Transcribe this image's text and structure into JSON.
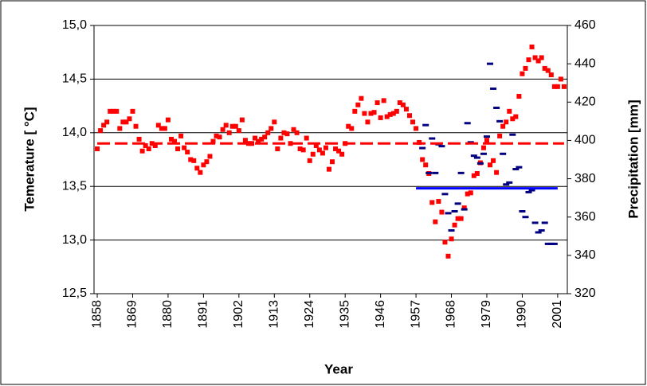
{
  "chart_data": {
    "type": "scatter",
    "xlabel": "Year",
    "ylabel": "Temerature [ °C]",
    "y2label": "Precipitation [mm]",
    "xlim": [
      1857,
      2004
    ],
    "xticks": [
      1858,
      1869,
      1880,
      1891,
      1902,
      1913,
      1924,
      1935,
      1946,
      1957,
      1968,
      1979,
      1990,
      2001
    ],
    "ylim": [
      12.5,
      15
    ],
    "yticks": [
      {
        "value": 12.5,
        "label": "12,5"
      },
      {
        "value": 13,
        "label": "13,0"
      },
      {
        "value": 13.5,
        "label": "13,5"
      },
      {
        "value": 14,
        "label": "14,0"
      },
      {
        "value": 14.5,
        "label": "14,5"
      },
      {
        "value": 15,
        "label": "15,0"
      }
    ],
    "y2lim": [
      320,
      460
    ],
    "y2ticks": [
      320,
      340,
      360,
      380,
      400,
      420,
      440,
      460
    ],
    "grid": true,
    "series": [
      {
        "color": "#ff0000",
        "style": "square",
        "x": [
          1858,
          1859,
          1860,
          1861,
          1862,
          1863,
          1864,
          1865,
          1866,
          1867,
          1868,
          1869,
          1870,
          1871,
          1872,
          1873,
          1874,
          1875,
          1876,
          1877,
          1878,
          1879,
          1880,
          1881,
          1882,
          1883,
          1884,
          1885,
          1886,
          1887,
          1888,
          1889,
          1890,
          1891,
          1892,
          1893,
          1894,
          1895,
          1896,
          1897,
          1898,
          1899,
          1900,
          1901,
          1902,
          1903,
          1904,
          1905,
          1906,
          1907,
          1908,
          1909,
          1910,
          1911,
          1912,
          1913,
          1914,
          1915,
          1916,
          1917,
          1918,
          1919,
          1920,
          1921,
          1922,
          1923,
          1924,
          1925,
          1926,
          1927,
          1928,
          1929,
          1930,
          1931,
          1932,
          1933,
          1934,
          1935,
          1936,
          1937,
          1938,
          1939,
          1940,
          1941,
          1942,
          1943,
          1944,
          1945,
          1946,
          1947,
          1948,
          1949,
          1950,
          1951,
          1952,
          1953,
          1954,
          1955,
          1956,
          1957,
          1958,
          1959,
          1960,
          1961,
          1962,
          1963,
          1964,
          1965,
          1966,
          1967,
          1968,
          1969,
          1970,
          1971,
          1972,
          1973,
          1974,
          1975,
          1976,
          1977,
          1978,
          1979,
          1980,
          1981,
          1982,
          1983,
          1984,
          1985,
          1986,
          1987,
          1988,
          1989,
          1990,
          1991,
          1992,
          1993,
          1994,
          1995,
          1996,
          1997,
          1998,
          1999,
          2000,
          2001,
          2002,
          2003
        ],
        "values": [
          13.85,
          14.02,
          14.07,
          14.1,
          14.2,
          14.2,
          14.2,
          14.04,
          14.1,
          14.1,
          14.13,
          14.2,
          14.06,
          13.94,
          13.83,
          13.88,
          13.85,
          13.9,
          13.88,
          14.07,
          14.04,
          14.04,
          14.12,
          13.94,
          13.92,
          13.85,
          13.97,
          13.86,
          13.82,
          13.75,
          13.74,
          13.67,
          13.63,
          13.7,
          13.73,
          13.78,
          13.92,
          13.97,
          13.96,
          14.03,
          14.07,
          14.0,
          14.06,
          14.06,
          14.02,
          14.12,
          13.93,
          13.9,
          13.9,
          13.95,
          13.92,
          13.94,
          13.96,
          14.0,
          14.04,
          14.1,
          13.85,
          13.95,
          14.0,
          13.99,
          13.9,
          14.03,
          14.0,
          13.85,
          13.84,
          13.95,
          13.74,
          13.8,
          13.88,
          13.84,
          13.81,
          13.86,
          13.66,
          13.73,
          13.85,
          13.83,
          13.8,
          13.9,
          14.06,
          14.04,
          14.2,
          14.26,
          14.32,
          14.18,
          14.1,
          14.18,
          14.19,
          14.28,
          14.14,
          14.3,
          14.15,
          14.17,
          14.18,
          14.2,
          14.28,
          14.26,
          14.22,
          14.16,
          14.1,
          14.04,
          13.91,
          13.75,
          13.7,
          13.62,
          13.35,
          13.17,
          13.36,
          13.26,
          12.98,
          12.85,
          13.01,
          13.14,
          13.2,
          13.2,
          13.3,
          13.43,
          13.44,
          13.6,
          13.62,
          13.72,
          13.86,
          13.93,
          13.7,
          13.74,
          13.63,
          13.97,
          14.06,
          14.1,
          14.2,
          14.13,
          14.15,
          14.34,
          14.55,
          14.6,
          14.68,
          14.8,
          14.7,
          14.67,
          14.7,
          14.6,
          14.58,
          14.54,
          14.43,
          14.43,
          14.5,
          14.43
        ]
      },
      {
        "color": "#000080",
        "style": "dash",
        "axis": "y2",
        "x": [
          1959,
          1960,
          1961,
          1962,
          1963,
          1964,
          1965,
          1966,
          1967,
          1968,
          1969,
          1970,
          1971,
          1972,
          1973,
          1974,
          1975,
          1976,
          1977,
          1978,
          1979,
          1980,
          1981,
          1982,
          1983,
          1984,
          1985,
          1986,
          1987,
          1988,
          1989,
          1990,
          1991,
          1992,
          1993,
          1994,
          1995,
          1996,
          1997,
          1998,
          1999,
          2000
        ],
        "values": [
          396,
          408,
          383,
          401,
          383,
          398,
          397,
          372,
          362,
          353,
          363,
          367,
          383,
          364,
          409,
          399,
          392,
          391,
          388,
          393,
          402,
          440,
          427,
          417,
          410,
          393,
          377,
          378,
          403,
          385,
          386,
          363,
          360,
          373,
          374,
          357,
          352,
          353,
          357,
          346,
          346,
          346
        ]
      },
      {
        "color": "#ff0000",
        "style": "dashed-line",
        "x": [
          1858,
          2003
        ],
        "values": [
          13.9,
          13.9
        ]
      },
      {
        "color": "#0000ff",
        "style": "line",
        "axis": "y2",
        "x": [
          1957,
          2001
        ],
        "values": [
          375,
          375
        ]
      }
    ]
  }
}
